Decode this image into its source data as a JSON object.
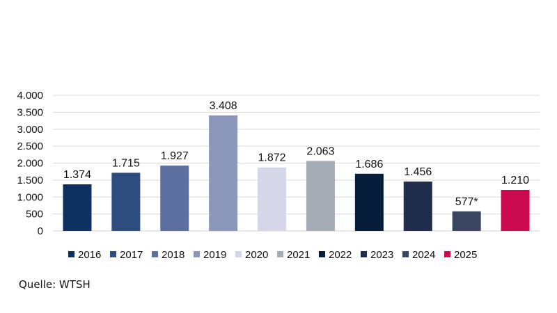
{
  "chart_data": {
    "type": "bar",
    "categories": [
      "2016",
      "2017",
      "2018",
      "2019",
      "2020",
      "2021",
      "2022",
      "2023",
      "2024",
      "2025"
    ],
    "values": [
      1374,
      1715,
      1927,
      3408,
      1872,
      2063,
      1686,
      1456,
      577,
      1210
    ],
    "value_labels": [
      "1.374",
      "1.715",
      "1.927",
      "3.408",
      "1.872",
      "2.063",
      "1.686",
      "1.456",
      "577*",
      "1.210"
    ],
    "colors": [
      "#0e3060",
      "#2d4d7f",
      "#5e709f",
      "#8b97bb",
      "#d5d7e8",
      "#a5acb5",
      "#051d3b",
      "#1f2c4c",
      "#3a4562",
      "#cb0a4f"
    ],
    "y_ticks": [
      0,
      500,
      1000,
      1500,
      2000,
      2500,
      3000,
      3500,
      4000
    ],
    "y_tick_labels": [
      "0",
      "500",
      "1.000",
      "1.500",
      "2.000",
      "2.500",
      "3.000",
      "3.500",
      "4.000"
    ],
    "ylim": [
      0,
      4000
    ],
    "grid": true,
    "legend": "bottom",
    "title": "",
    "xlabel": "",
    "ylabel": ""
  },
  "source_text": "Quelle: WTSH"
}
